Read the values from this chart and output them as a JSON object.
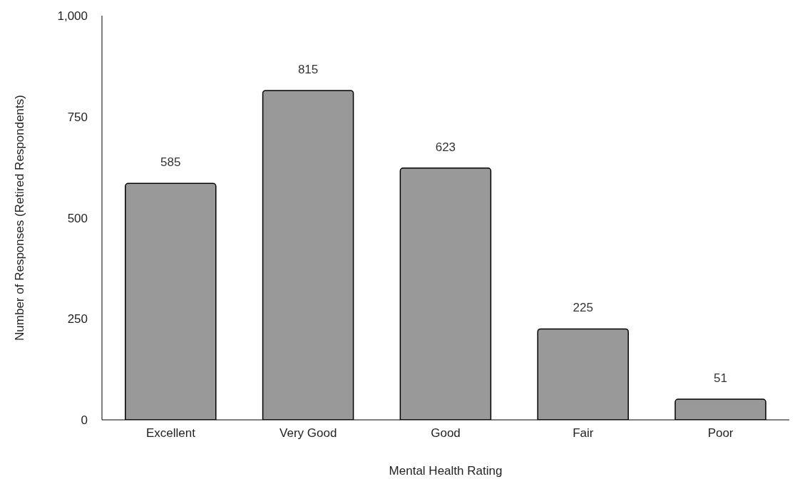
{
  "chart_data": {
    "type": "bar",
    "xlabel": "Mental Health Rating",
    "ylabel": "Number of Responses (Retired Respondents)",
    "categories": [
      "Excellent",
      "Very Good",
      "Good",
      "Fair",
      "Poor"
    ],
    "values": [
      585,
      815,
      623,
      225,
      51
    ],
    "color": "#999999",
    "ylim": [
      0,
      1000
    ],
    "yticks": [
      0,
      250,
      500,
      750,
      {
        "value": 1000,
        "label": "1,000"
      }
    ],
    "grid": false,
    "legend": false,
    "data_labels": true
  }
}
